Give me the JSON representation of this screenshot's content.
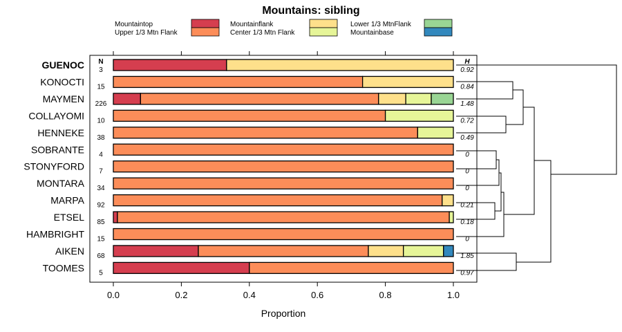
{
  "chart_data": {
    "type": "bar",
    "orientation": "horizontal",
    "stacked": true,
    "title": "Mountains: sibling",
    "xlabel": "Proportion",
    "xlim": [
      0,
      1
    ],
    "xticks": [
      "0.0",
      "0.2",
      "0.4",
      "0.6",
      "0.8",
      "1.0"
    ],
    "n_header": "N",
    "h_header": "H",
    "series": [
      {
        "name": "Mountaintop",
        "color": "#d53e4f"
      },
      {
        "name": "Upper 1/3 Mtn Flank",
        "color": "#fc8d59"
      },
      {
        "name": "Mountainflank",
        "color": "#fee08b"
      },
      {
        "name": "Center 1/3 Mtn Flank",
        "color": "#e6f598"
      },
      {
        "name": "Lower 1/3 MtnFlank",
        "color": "#99d594"
      },
      {
        "name": "Mountainbase",
        "color": "#3288bd"
      }
    ],
    "rows": [
      {
        "label": "GUENOC",
        "bold": true,
        "n": "3",
        "h": "0.92",
        "values": [
          0.333,
          0,
          0.667,
          0,
          0,
          0
        ]
      },
      {
        "label": "KONOCTI",
        "bold": false,
        "n": "15",
        "h": "0.84",
        "values": [
          0,
          0.733,
          0.267,
          0,
          0,
          0
        ]
      },
      {
        "label": "MAYMEN",
        "bold": false,
        "n": "226",
        "h": "1.48",
        "values": [
          0.08,
          0.7,
          0.08,
          0.075,
          0.065,
          0
        ]
      },
      {
        "label": "COLLAYOMI",
        "bold": false,
        "n": "10",
        "h": "0.72",
        "values": [
          0,
          0.8,
          0,
          0.2,
          0,
          0
        ]
      },
      {
        "label": "HENNEKE",
        "bold": false,
        "n": "38",
        "h": "0.49",
        "values": [
          0,
          0.895,
          0,
          0.105,
          0,
          0
        ]
      },
      {
        "label": "SOBRANTE",
        "bold": false,
        "n": "4",
        "h": "0",
        "values": [
          0,
          1,
          0,
          0,
          0,
          0
        ]
      },
      {
        "label": "STONYFORD",
        "bold": false,
        "n": "7",
        "h": "0",
        "values": [
          0,
          1,
          0,
          0,
          0,
          0
        ]
      },
      {
        "label": "MONTARA",
        "bold": false,
        "n": "34",
        "h": "0",
        "values": [
          0,
          1,
          0,
          0,
          0,
          0
        ]
      },
      {
        "label": "MARPA",
        "bold": false,
        "n": "92",
        "h": "0.21",
        "values": [
          0,
          0.967,
          0.033,
          0,
          0,
          0
        ]
      },
      {
        "label": "ETSEL",
        "bold": false,
        "n": "85",
        "h": "0.18",
        "values": [
          0.012,
          0.976,
          0,
          0.012,
          0,
          0
        ]
      },
      {
        "label": "HAMBRIGHT",
        "bold": false,
        "n": "15",
        "h": "0",
        "values": [
          0,
          1,
          0,
          0,
          0,
          0
        ]
      },
      {
        "label": "AIKEN",
        "bold": false,
        "n": "68",
        "h": "1.85",
        "values": [
          0.25,
          0.5,
          0.103,
          0.118,
          0,
          0.029
        ]
      },
      {
        "label": "TOOMES",
        "bold": false,
        "n": "5",
        "h": "0.97",
        "values": [
          0.4,
          0.6,
          0,
          0,
          0,
          0
        ]
      }
    ]
  }
}
